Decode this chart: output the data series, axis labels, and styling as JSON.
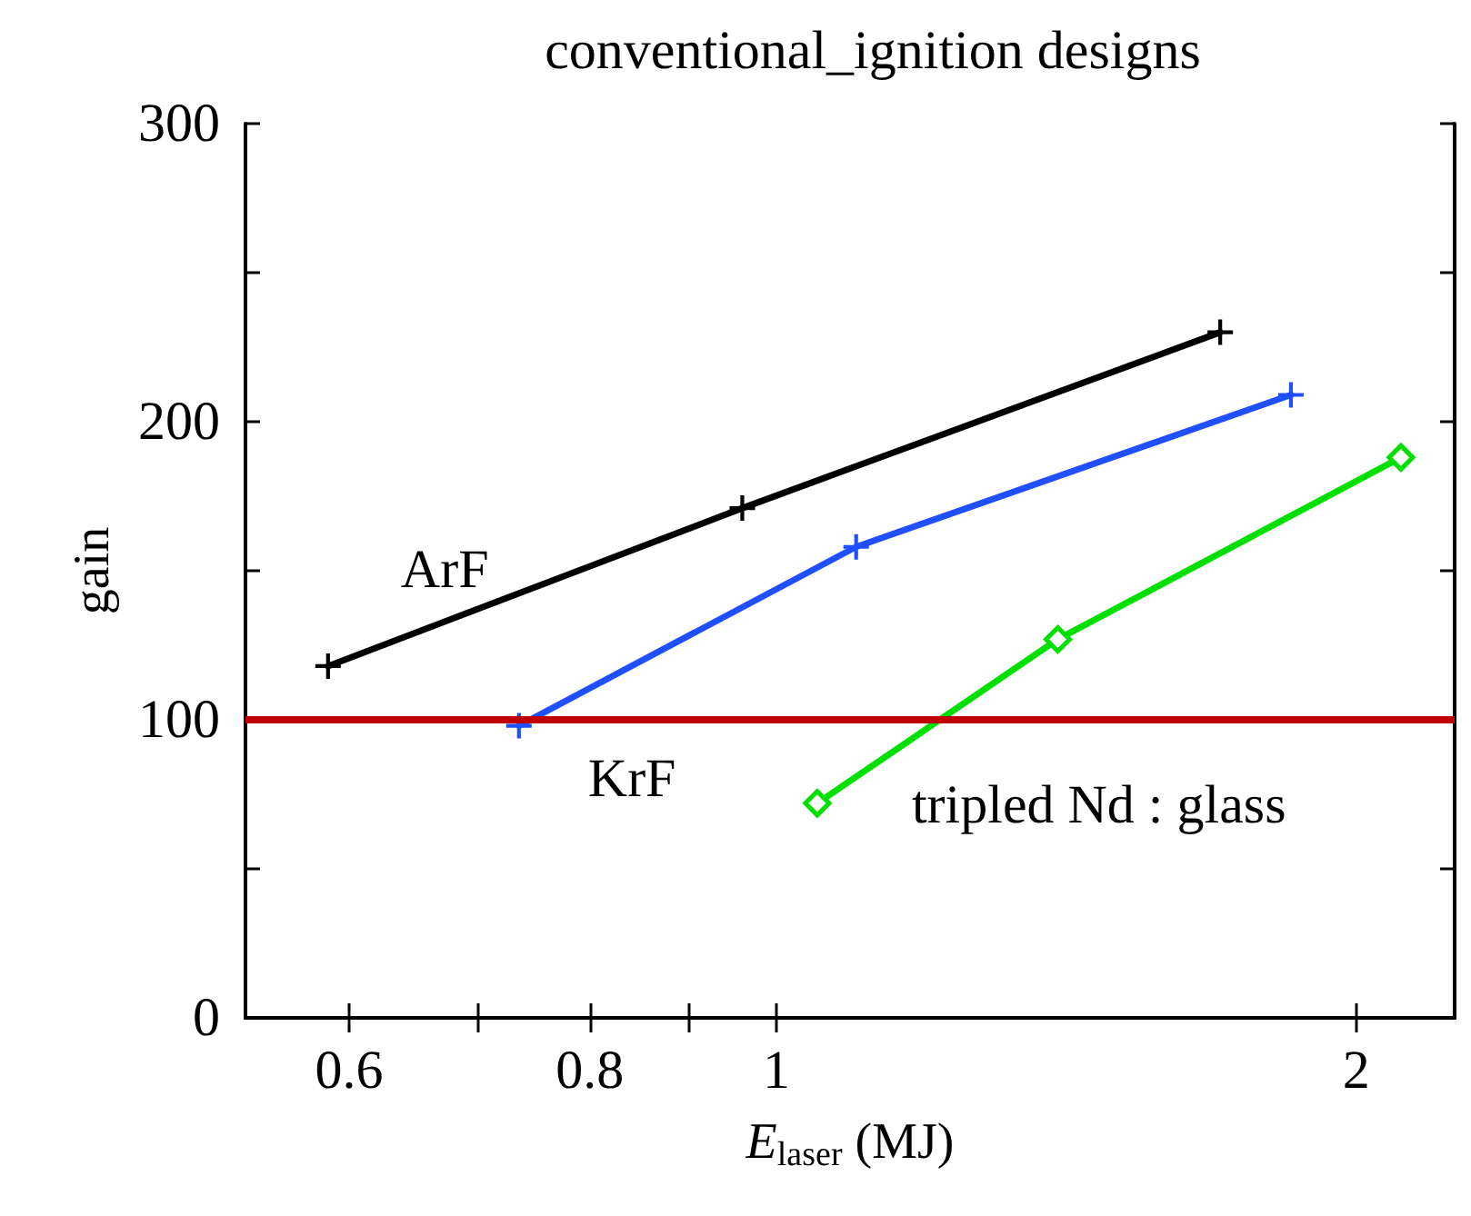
{
  "chart_data": {
    "type": "line",
    "title": "conventional_ignition designs",
    "xlabel": "E$_{laser}$ (MJ)",
    "ylabel": "gain",
    "log": "x",
    "grid": false,
    "legend": false,
    "line_style": "solid",
    "xlim": [
      0.53,
      2.25
    ],
    "xticks": [
      0.6,
      {
        "value": 0.7,
        "label": null
      },
      0.8,
      {
        "value": 0.9,
        "label": null
      },
      1,
      2
    ],
    "ylim": [
      0,
      300
    ],
    "yticks": [
      0,
      {
        "value": 50,
        "label": null
      },
      100,
      {
        "value": 150,
        "label": null
      },
      200,
      {
        "value": 250,
        "label": null
      },
      300
    ],
    "series": [
      {
        "name": "ArF",
        "color": "#000000",
        "marker": "cross",
        "x": [
          0.585,
          0.96,
          1.7
        ],
        "values": [
          118,
          171,
          230
        ]
      },
      {
        "name": "KrF",
        "color": "#1f4fff",
        "marker": "cross",
        "x": [
          0.735,
          1.1,
          1.85
        ],
        "values": [
          98,
          158,
          209
        ]
      },
      {
        "name": "tripled Nd : glass",
        "color": "#00e000",
        "marker": "diamond",
        "x": [
          1.05,
          1.4,
          2.11
        ],
        "values": [
          72,
          127,
          188
        ]
      }
    ],
    "ref_lines": [
      {
        "axis": "y",
        "value": 100,
        "color": "#c00000"
      }
    ]
  }
}
